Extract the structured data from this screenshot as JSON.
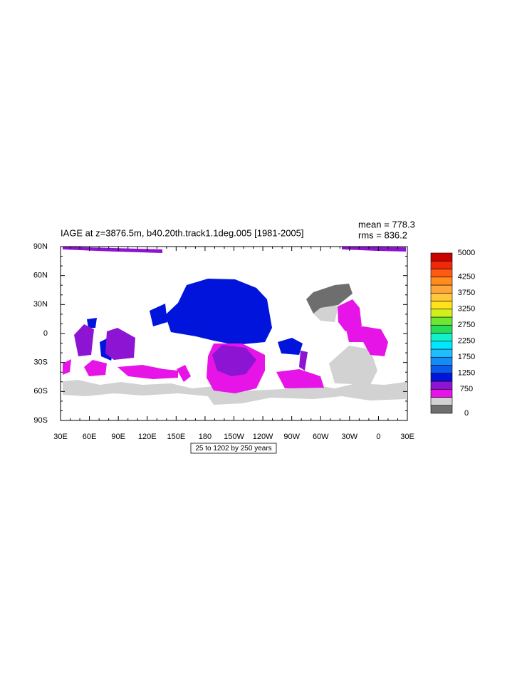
{
  "title": "IAGE at z=3876.5m, b40.20th.track1.1deg.005 [1981-2005]",
  "mean": "mean = 778.3",
  "rms": "rms = 836.2",
  "subtitle": "25 to 1202 by 250 years",
  "x_labels": [
    "30E",
    "60E",
    "90E",
    "120E",
    "150E",
    "180",
    "150W",
    "120W",
    "90W",
    "60W",
    "30W",
    "0",
    "30E"
  ],
  "y_labels": [
    "90N",
    "60N",
    "30N",
    "0",
    "30S",
    "60S",
    "90S"
  ],
  "colorbar": {
    "range": [
      0,
      5000
    ],
    "labels": [
      0,
      750,
      1250,
      1750,
      2250,
      2750,
      3250,
      3750,
      4250,
      5000
    ],
    "colors": [
      "#6e6e6e",
      "#d2d2d2",
      "#e614e6",
      "#8c14d2",
      "#0014dc",
      "#0a5aeb",
      "#148cf5",
      "#1ebeff",
      "#00e6ff",
      "#14f0c8",
      "#28dc5a",
      "#6ee632",
      "#d2f01e",
      "#ffe11e",
      "#ffc83c",
      "#ffa53c",
      "#ff8c1e",
      "#ff5a14",
      "#f0280a",
      "#c80000"
    ]
  }
}
